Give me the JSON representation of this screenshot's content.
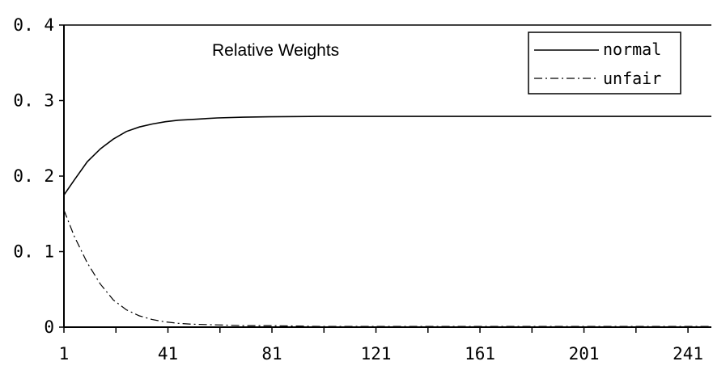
{
  "chart_data": {
    "type": "line",
    "title": "",
    "annotation": "Relative Weights",
    "xlabel": "",
    "ylabel": "",
    "xlim": [
      1,
      250
    ],
    "ylim": [
      0,
      0.4
    ],
    "x_ticks": [
      1,
      41,
      81,
      121,
      161,
      201,
      241
    ],
    "x_tick_labels": [
      "1",
      "41",
      "81",
      "121",
      "161",
      "201",
      "241"
    ],
    "y_ticks": [
      0,
      0.1,
      0.2,
      0.3,
      0.4
    ],
    "y_tick_labels": [
      "0",
      "0. 1",
      "0. 2",
      "0. 3",
      "0. 4"
    ],
    "grid": false,
    "legend": "top-right",
    "series": [
      {
        "name": "normal",
        "style": "solid",
        "x": [
          1,
          5,
          10,
          15,
          20,
          25,
          30,
          35,
          40,
          45,
          50,
          60,
          70,
          80,
          100,
          150,
          200,
          250
        ],
        "values": [
          0.175,
          0.195,
          0.219,
          0.236,
          0.249,
          0.259,
          0.265,
          0.269,
          0.272,
          0.274,
          0.275,
          0.277,
          0.278,
          0.2785,
          0.279,
          0.279,
          0.279,
          0.279
        ]
      },
      {
        "name": "unfair",
        "style": "dashdot",
        "x": [
          1,
          5,
          10,
          15,
          20,
          25,
          30,
          35,
          40,
          45,
          50,
          60,
          70,
          80,
          100,
          150,
          200,
          250
        ],
        "values": [
          0.155,
          0.12,
          0.085,
          0.057,
          0.036,
          0.023,
          0.015,
          0.01,
          0.007,
          0.005,
          0.004,
          0.003,
          0.002,
          0.002,
          0.001,
          0.001,
          0.001,
          0.001
        ]
      }
    ],
    "colors": {
      "line": "#000000",
      "background": "#ffffff"
    }
  }
}
